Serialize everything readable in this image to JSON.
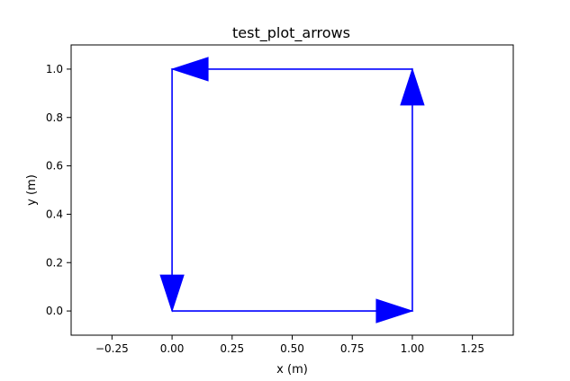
{
  "chart_data": {
    "type": "line",
    "title": "test_plot_arrows",
    "xlabel": "x (m)",
    "ylabel": "y (m)",
    "xlim": [
      -0.42,
      1.42
    ],
    "ylim": [
      -0.1,
      1.1
    ],
    "xticks": [
      -0.25,
      0.0,
      0.25,
      0.5,
      0.75,
      1.0,
      1.25
    ],
    "xtick_labels": [
      "−0.25",
      "0.00",
      "0.25",
      "0.50",
      "0.75",
      "1.00",
      "1.25"
    ],
    "yticks": [
      0.0,
      0.2,
      0.4,
      0.6,
      0.8,
      1.0
    ],
    "ytick_labels": [
      "0.0",
      "0.2",
      "0.4",
      "0.6",
      "0.8",
      "1.0"
    ],
    "grid": false,
    "series": [
      {
        "color": "#0000ff",
        "x": [
          0,
          1,
          1,
          0,
          0
        ],
        "y": [
          0,
          0,
          1,
          1,
          0
        ]
      }
    ],
    "arrows": [
      {
        "from": [
          0,
          0
        ],
        "to": [
          1,
          0
        ]
      },
      {
        "from": [
          1,
          0
        ],
        "to": [
          1,
          1
        ]
      },
      {
        "from": [
          1,
          1
        ],
        "to": [
          0,
          1
        ]
      },
      {
        "from": [
          0,
          1
        ],
        "to": [
          0,
          0
        ]
      }
    ]
  }
}
